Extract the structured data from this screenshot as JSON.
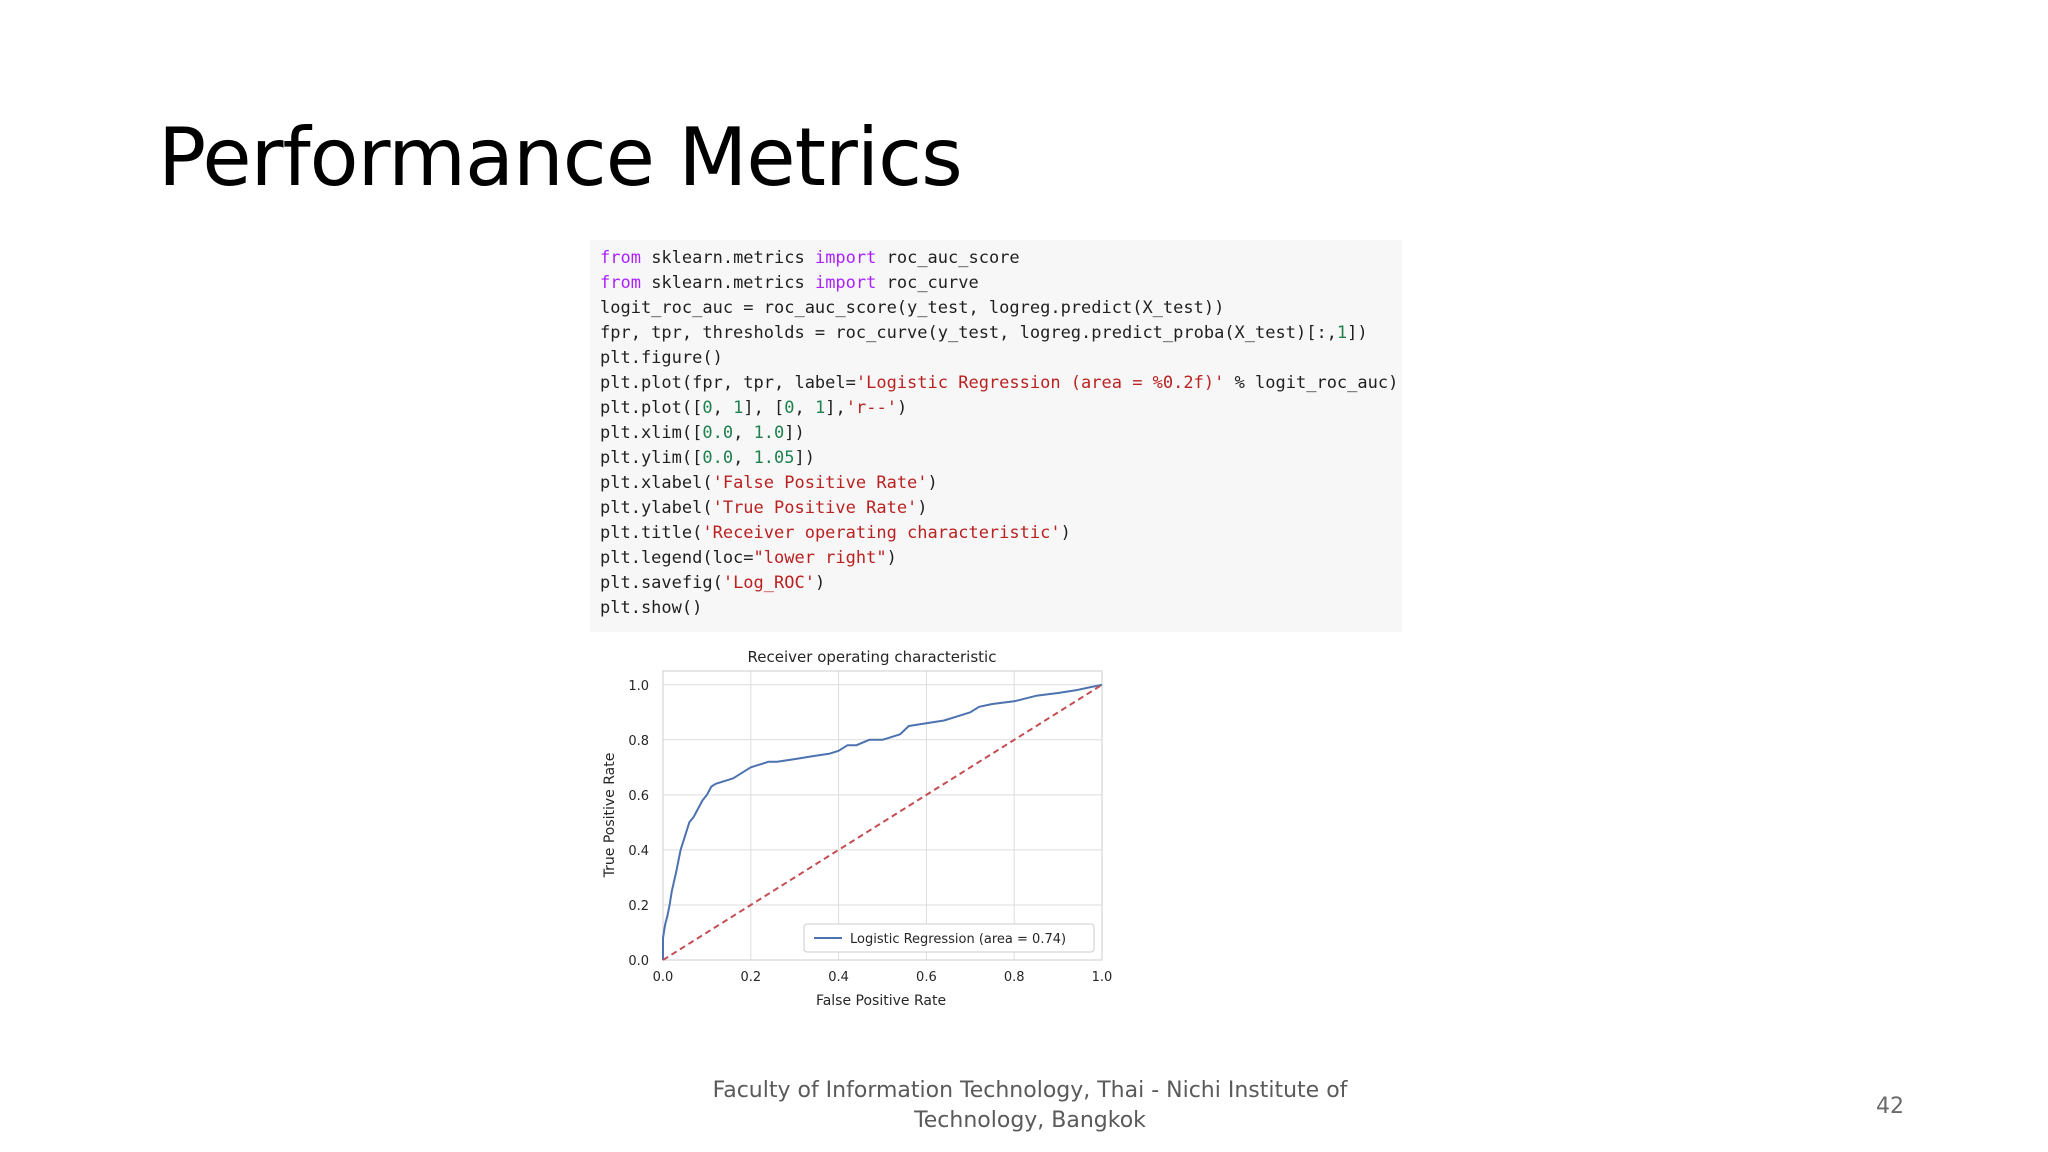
{
  "slide": {
    "title": "Performance Metrics",
    "footer_line1": "Faculty of Information Technology, Thai - Nichi Institute of",
    "footer_line2": "Technology, Bangkok",
    "page_number": "42"
  },
  "code": {
    "lines": [
      [
        {
          "t": "kw",
          "v": "from"
        },
        {
          "t": "",
          "v": " sklearn.metrics "
        },
        {
          "t": "kw",
          "v": "import"
        },
        {
          "t": "",
          "v": " roc_auc_score"
        }
      ],
      [
        {
          "t": "kw",
          "v": "from"
        },
        {
          "t": "",
          "v": " sklearn.metrics "
        },
        {
          "t": "kw",
          "v": "import"
        },
        {
          "t": "",
          "v": " roc_curve"
        }
      ],
      [
        {
          "t": "",
          "v": "logit_roc_auc = roc_auc_score(y_test, logreg.predict(X_test))"
        }
      ],
      [
        {
          "t": "",
          "v": "fpr, tpr, thresholds = roc_curve(y_test, logreg.predict_proba(X_test)[:,"
        },
        {
          "t": "num",
          "v": "1"
        },
        {
          "t": "",
          "v": "])"
        }
      ],
      [
        {
          "t": "",
          "v": "plt.figure()"
        }
      ],
      [
        {
          "t": "",
          "v": "plt.plot(fpr, tpr, label="
        },
        {
          "t": "str",
          "v": "'Logistic Regression (area = %0.2f)'"
        },
        {
          "t": "",
          "v": " % logit_roc_auc)"
        }
      ],
      [
        {
          "t": "",
          "v": "plt.plot(["
        },
        {
          "t": "num",
          "v": "0"
        },
        {
          "t": "",
          "v": ", "
        },
        {
          "t": "num",
          "v": "1"
        },
        {
          "t": "",
          "v": "], ["
        },
        {
          "t": "num",
          "v": "0"
        },
        {
          "t": "",
          "v": ", "
        },
        {
          "t": "num",
          "v": "1"
        },
        {
          "t": "",
          "v": "],"
        },
        {
          "t": "str",
          "v": "'r--'"
        },
        {
          "t": "",
          "v": ")"
        }
      ],
      [
        {
          "t": "",
          "v": "plt.xlim(["
        },
        {
          "t": "num",
          "v": "0.0"
        },
        {
          "t": "",
          "v": ", "
        },
        {
          "t": "num",
          "v": "1.0"
        },
        {
          "t": "",
          "v": "])"
        }
      ],
      [
        {
          "t": "",
          "v": "plt.ylim(["
        },
        {
          "t": "num",
          "v": "0.0"
        },
        {
          "t": "",
          "v": ", "
        },
        {
          "t": "num",
          "v": "1.05"
        },
        {
          "t": "",
          "v": "])"
        }
      ],
      [
        {
          "t": "",
          "v": "plt.xlabel("
        },
        {
          "t": "str",
          "v": "'False Positive Rate'"
        },
        {
          "t": "",
          "v": ")"
        }
      ],
      [
        {
          "t": "",
          "v": "plt.ylabel("
        },
        {
          "t": "str",
          "v": "'True Positive Rate'"
        },
        {
          "t": "",
          "v": ")"
        }
      ],
      [
        {
          "t": "",
          "v": "plt.title("
        },
        {
          "t": "str",
          "v": "'Receiver operating characteristic'"
        },
        {
          "t": "",
          "v": ")"
        }
      ],
      [
        {
          "t": "",
          "v": "plt.legend(loc="
        },
        {
          "t": "str",
          "v": "\"lower right\""
        },
        {
          "t": "",
          "v": ")"
        }
      ],
      [
        {
          "t": "",
          "v": "plt.savefig("
        },
        {
          "t": "str",
          "v": "'Log_ROC'"
        },
        {
          "t": "",
          "v": ")"
        }
      ],
      [
        {
          "t": "",
          "v": "plt.show()"
        }
      ]
    ],
    "colors": {
      "keyword": "#aa22ff",
      "string": "#ba2121",
      "number": "#208050",
      "background": "#f7f7f7"
    }
  },
  "chart_data": {
    "type": "line",
    "title": "Receiver operating characteristic",
    "xlabel": "False Positive Rate",
    "ylabel": "True Positive Rate",
    "xlim": [
      0.0,
      1.0
    ],
    "ylim": [
      0.0,
      1.05
    ],
    "xticks": [
      "0.0",
      "0.2",
      "0.4",
      "0.6",
      "0.8",
      "1.0"
    ],
    "yticks": [
      "0.0",
      "0.2",
      "0.4",
      "0.6",
      "0.8",
      "1.0"
    ],
    "grid": true,
    "legend_position": "lower-right",
    "series": [
      {
        "name": "Logistic Regression (area = 0.74)",
        "color": "#4c72b0",
        "style": "solid",
        "x": [
          0.0,
          0.0,
          0.005,
          0.01,
          0.015,
          0.02,
          0.03,
          0.04,
          0.05,
          0.06,
          0.07,
          0.08,
          0.09,
          0.1,
          0.11,
          0.12,
          0.14,
          0.16,
          0.18,
          0.2,
          0.22,
          0.24,
          0.26,
          0.3,
          0.34,
          0.38,
          0.4,
          0.42,
          0.44,
          0.47,
          0.5,
          0.52,
          0.54,
          0.56,
          0.6,
          0.64,
          0.66,
          0.7,
          0.72,
          0.75,
          0.8,
          0.85,
          0.9,
          0.94,
          0.97,
          1.0
        ],
        "y": [
          0.0,
          0.08,
          0.13,
          0.16,
          0.2,
          0.25,
          0.32,
          0.4,
          0.45,
          0.5,
          0.52,
          0.55,
          0.58,
          0.6,
          0.63,
          0.64,
          0.65,
          0.66,
          0.68,
          0.7,
          0.71,
          0.72,
          0.72,
          0.73,
          0.74,
          0.75,
          0.76,
          0.78,
          0.78,
          0.8,
          0.8,
          0.81,
          0.82,
          0.85,
          0.86,
          0.87,
          0.88,
          0.9,
          0.92,
          0.93,
          0.94,
          0.96,
          0.97,
          0.98,
          0.99,
          1.0
        ]
      },
      {
        "name": "",
        "color": "#c44e52",
        "style": "dashed",
        "x": [
          0.0,
          1.0
        ],
        "y": [
          0.0,
          1.0
        ]
      }
    ]
  }
}
